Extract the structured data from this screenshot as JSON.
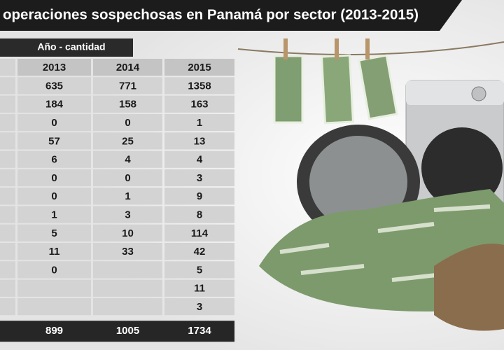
{
  "header": {
    "title": "operaciones sospechosas en Panamá  por sector (2013-2015)"
  },
  "table": {
    "group_header": "Año - cantidad",
    "columns": [
      2013,
      2014,
      2015
    ],
    "rows": [
      [
        635,
        771,
        1358
      ],
      [
        184,
        158,
        163
      ],
      [
        0,
        0,
        1
      ],
      [
        57,
        25,
        13
      ],
      [
        6,
        4,
        4
      ],
      [
        0,
        0,
        3
      ],
      [
        0,
        1,
        9
      ],
      [
        1,
        3,
        8
      ],
      [
        5,
        10,
        114
      ],
      [
        11,
        33,
        42
      ],
      [
        0,
        null,
        5
      ],
      [
        null,
        null,
        11
      ],
      [
        null,
        null,
        3
      ]
    ],
    "totals": [
      899,
      1005,
      1734
    ]
  }
}
